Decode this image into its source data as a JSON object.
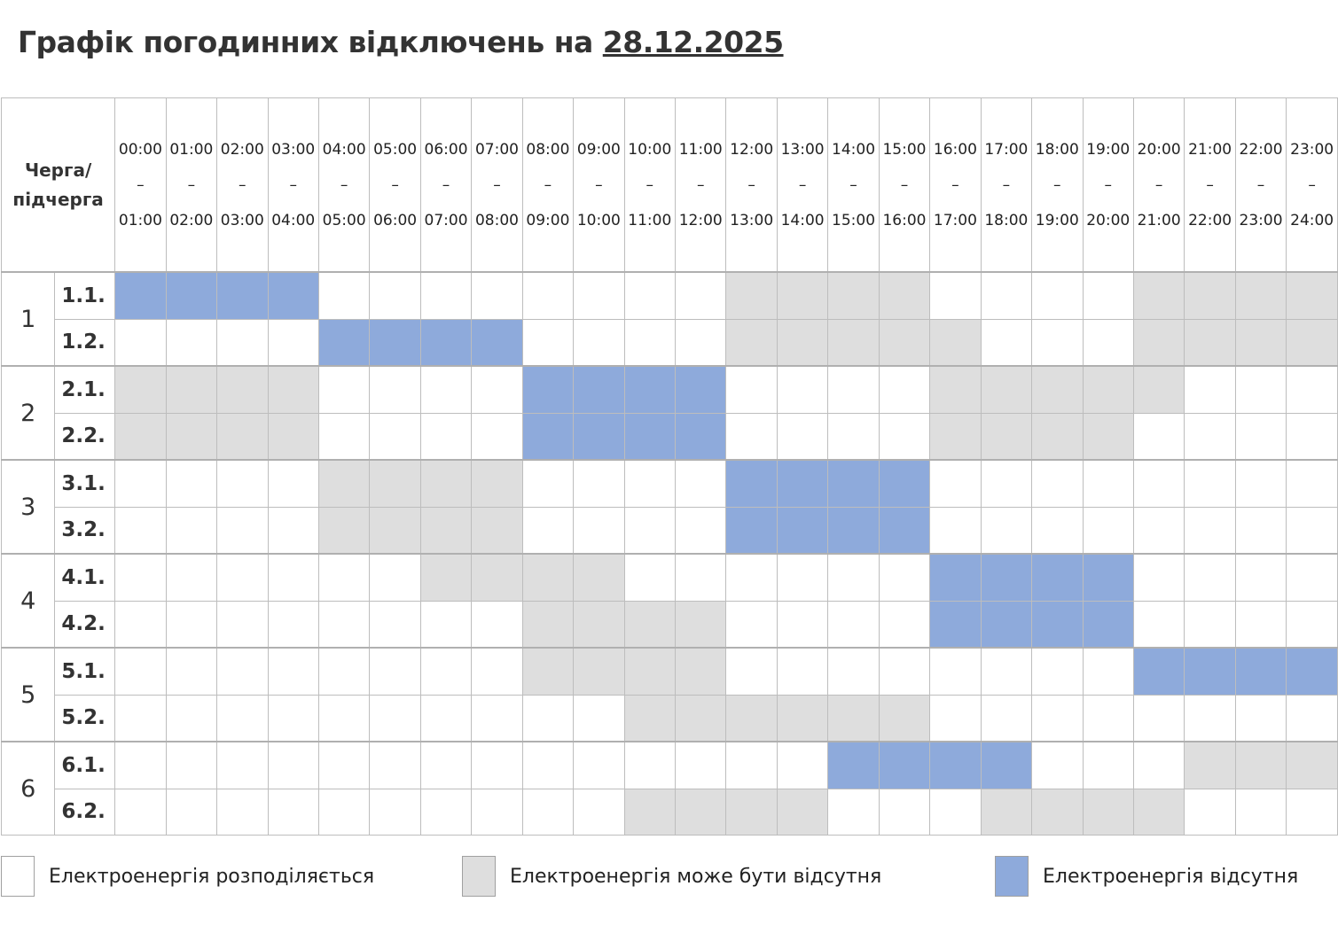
{
  "title": {
    "prefix": "Графік погодинних відключень на ",
    "date": "28.12.2025"
  },
  "header": {
    "corner": "Черга/ підчерга",
    "hours": [
      "00:00 – 01:00",
      "01:00 – 02:00",
      "02:00 – 03:00",
      "03:00 – 04:00",
      "04:00 – 05:00",
      "05:00 – 06:00",
      "06:00 – 07:00",
      "07:00 – 08:00",
      "08:00 – 09:00",
      "09:00 – 10:00",
      "10:00 – 11:00",
      "11:00 – 12:00",
      "12:00 – 13:00",
      "13:00 – 14:00",
      "14:00 – 15:00",
      "15:00 – 16:00",
      "16:00 – 17:00",
      "17:00 – 18:00",
      "18:00 – 19:00",
      "19:00 – 20:00",
      "20:00 – 21:00",
      "21:00 – 22:00",
      "22:00 – 23:00",
      "23:00 – 24:00"
    ]
  },
  "colors": {
    "W": "#ffffff",
    "G": "#dedede",
    "B": "#8eaadb"
  },
  "groups": [
    {
      "label": "1",
      "subs": [
        {
          "label": "1.1.",
          "hours": "BBBBWWWWWWWWGGGGWWWWGGGG"
        },
        {
          "label": "1.2.",
          "hours": "WWWWBBBBWWWWGGGGGWWWGGGG"
        }
      ]
    },
    {
      "label": "2",
      "subs": [
        {
          "label": "2.1.",
          "hours": "GGGGWWWWBBBBWWWWGGGGGWWW"
        },
        {
          "label": "2.2.",
          "hours": "GGGGWWWWBBBBWWWWGGGGWWWW"
        }
      ]
    },
    {
      "label": "3",
      "subs": [
        {
          "label": "3.1.",
          "hours": "WWWWGGGGWWWWBBBBWWWWWWWW"
        },
        {
          "label": "3.2.",
          "hours": "WWWWGGGGWWWWBBBBWWWWWWWW"
        }
      ]
    },
    {
      "label": "4",
      "subs": [
        {
          "label": "4.1.",
          "hours": "WWWWWWGGGGWWWWWWBBBBWWWW"
        },
        {
          "label": "4.2.",
          "hours": "WWWWWWWWGGGGWWWWBBBBWWWW"
        }
      ]
    },
    {
      "label": "5",
      "subs": [
        {
          "label": "5.1.",
          "hours": "WWWWWWWWGGGGWWWWWWWWBBBB"
        },
        {
          "label": "5.2.",
          "hours": "WWWWWWWWWWGGGGGGWWWWWWWW"
        }
      ]
    },
    {
      "label": "6",
      "subs": [
        {
          "label": "6.1.",
          "hours": "WWWWWWWWWWWWWWBBBBWWWGGG"
        },
        {
          "label": "6.2.",
          "hours": "WWWWWWWWWWGGGGWWWGGGGWWW"
        }
      ]
    }
  ],
  "legend": [
    {
      "code": "W",
      "label": "Електроенергія розподіляється"
    },
    {
      "code": "G",
      "label": "Електроенергія може бути відсутня"
    },
    {
      "code": "B",
      "label": "Електроенергія відсутня"
    }
  ]
}
